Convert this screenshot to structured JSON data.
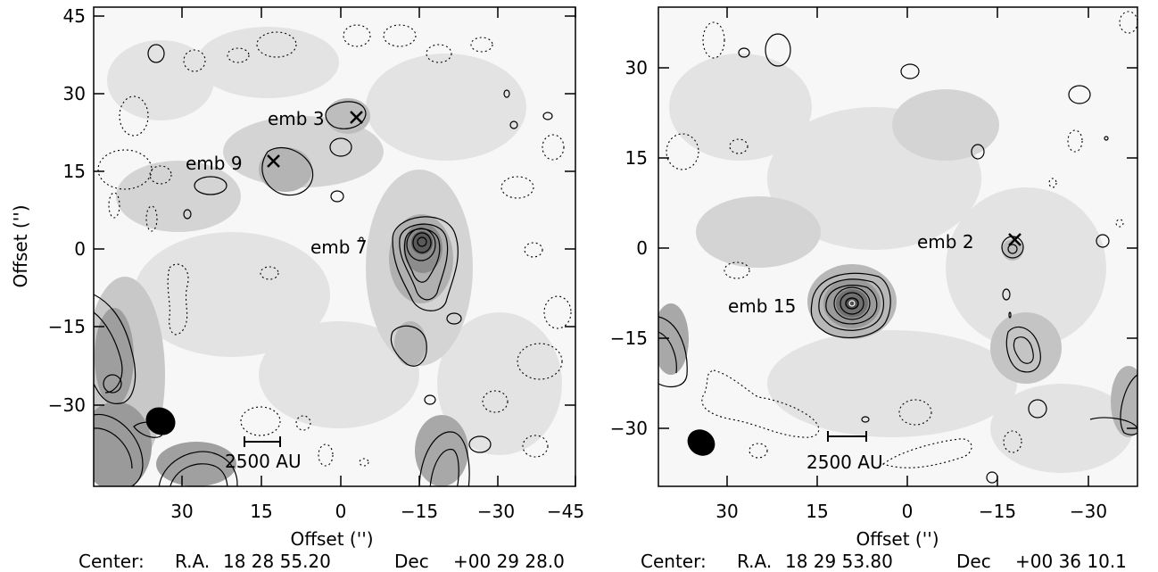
{
  "panels": [
    {
      "id": "left",
      "xlabel": "Offset ('')",
      "ylabel": "Offset ('')",
      "xticks": [
        "30",
        "15",
        "0",
        "−15",
        "−30",
        "−45"
      ],
      "yticks": [
        "45",
        "30",
        "15",
        "0",
        "−15",
        "−30"
      ],
      "center": {
        "prefix": "Center:",
        "ra_label": "R.A.",
        "ra": "18 28 55.20",
        "dec_label": "Dec",
        "dec": "+00 29 28.0"
      },
      "sources": [
        {
          "label": "emb 3",
          "marker": true
        },
        {
          "label": "emb 9",
          "marker": true
        },
        {
          "label": "emb 7",
          "marker": false
        }
      ],
      "scale_bar": "2500 AU"
    },
    {
      "id": "right",
      "xlabel": "Offset ('')",
      "ylabel": "",
      "xticks": [
        "30",
        "15",
        "0",
        "−15",
        "−30"
      ],
      "yticks": [
        "30",
        "15",
        "0",
        "−15",
        "−30"
      ],
      "center": {
        "prefix": "Center:",
        "ra_label": "R.A.",
        "ra": "18 29 53.80",
        "dec_label": "Dec",
        "dec": "+00 36 10.1"
      },
      "sources": [
        {
          "label": "emb 2",
          "marker": true
        },
        {
          "label": "emb 15",
          "marker": false
        }
      ],
      "scale_bar": "2500 AU"
    }
  ],
  "colors": {
    "frame": "#000000",
    "bg_light": "#ebebeb",
    "bg_mid": "#cfcfcf",
    "bg_dark": "#a9a9a9",
    "peak": "#555555"
  }
}
